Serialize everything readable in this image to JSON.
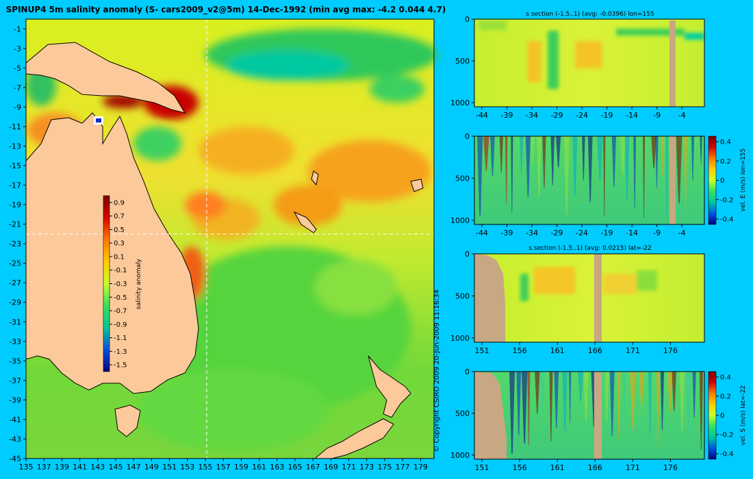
{
  "page": {
    "copyright": "© Copyright CSIRO 2009   20-Jun-2009 11:16:34"
  },
  "chart_data": [
    {
      "type": "heatmap",
      "title": "SPINUP4 5m salinity anomaly (S- cars2009_v2@5m) 14-Dec-1992 (min avg max: -4.2 0.044 4.7)",
      "xlabel": "",
      "ylabel": "",
      "x_ticks": [
        "135",
        "137",
        "139",
        "141",
        "143",
        "145",
        "147",
        "149",
        "151",
        "153",
        "155",
        "157",
        "159",
        "161",
        "163",
        "165",
        "167",
        "169",
        "171",
        "173",
        "175",
        "177",
        "179"
      ],
      "y_ticks": [
        "-1",
        "-3",
        "-5",
        "-7",
        "-9",
        "-11",
        "-13",
        "-15",
        "-17",
        "-19",
        "-21",
        "-23",
        "-25",
        "-27",
        "-29",
        "-31",
        "-33",
        "-35",
        "-37",
        "-39",
        "-41",
        "-43",
        "-45"
      ],
      "xlim": [
        135,
        180.5
      ],
      "ylim": [
        -45,
        0
      ],
      "section_lines": {
        "lon": 155,
        "lat": -22
      },
      "colorbar": {
        "label": "salinity anomaly",
        "ticks": [
          "0.9",
          "0.7",
          "0.5",
          "0.3",
          "0.1",
          "-0.1",
          "-0.3",
          "-0.5",
          "-0.7",
          "-0.9",
          "-1.1",
          "-1.3",
          "-1.5"
        ],
        "range": [
          -1.6,
          1.0
        ]
      },
      "grid": false
    },
    {
      "type": "heatmap",
      "title": "s section (-1.5..1) (avg: -0.0396) lon=155",
      "x_ticks": [
        "-44",
        "-39",
        "-34",
        "-29",
        "-24",
        "-19",
        "-14",
        "-9",
        "-4"
      ],
      "y_ticks": [
        "0",
        "500",
        "1000"
      ],
      "xlim": [
        -45.5,
        0.5
      ],
      "ylim": [
        1050,
        0
      ]
    },
    {
      "type": "heatmap",
      "title": "",
      "x_ticks": [
        "-44",
        "-39",
        "-34",
        "-29",
        "-24",
        "-19",
        "-14",
        "-9",
        "-4"
      ],
      "y_ticks": [
        "0",
        "500",
        "1000"
      ],
      "xlim": [
        -45.5,
        0.5
      ],
      "ylim": [
        1050,
        0
      ],
      "colorbar": {
        "label": "vel. E (m/s) lon=155",
        "ticks": [
          "0.4",
          "0.2",
          "0",
          "-0.2",
          "-0.4"
        ]
      }
    },
    {
      "type": "heatmap",
      "title": "s section (-1.5..1) (avg: 0.0215) lat=-22",
      "x_ticks": [
        "151",
        "156",
        "161",
        "166",
        "171",
        "176"
      ],
      "y_ticks": [
        "0",
        "500",
        "1000"
      ],
      "xlim": [
        150,
        180.5
      ],
      "ylim": [
        1050,
        0
      ]
    },
    {
      "type": "heatmap",
      "title": "",
      "x_ticks": [
        "151",
        "156",
        "161",
        "166",
        "171",
        "176"
      ],
      "y_ticks": [
        "0",
        "500",
        "1000"
      ],
      "xlim": [
        150,
        180.5
      ],
      "ylim": [
        1050,
        0
      ],
      "colorbar": {
        "label": "vel. S (m/s) lat=-22",
        "ticks": [
          "0.4",
          "0.2",
          "0",
          "-0.2",
          "-0.4"
        ]
      }
    }
  ]
}
